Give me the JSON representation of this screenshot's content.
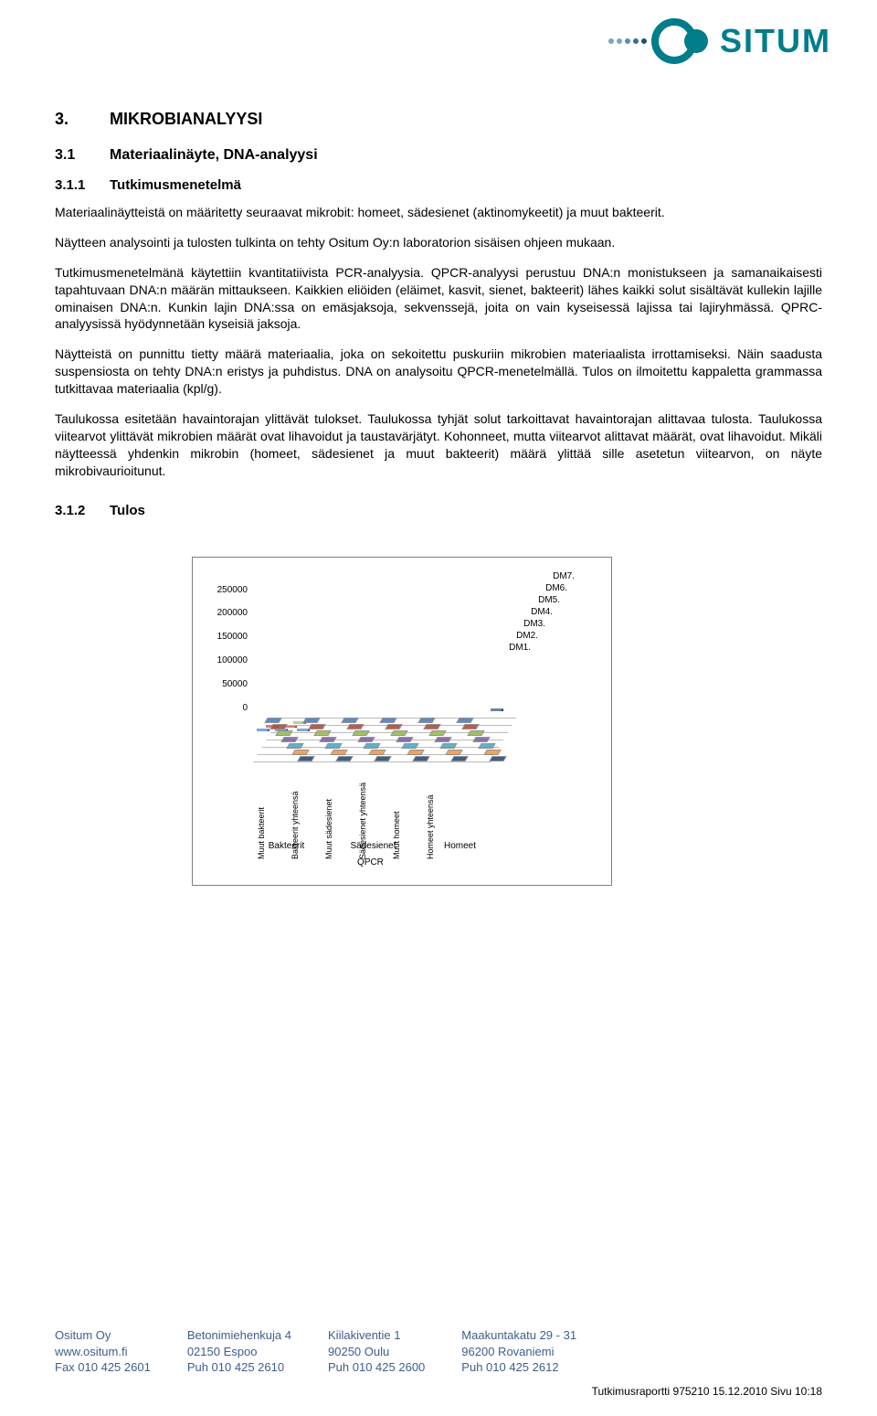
{
  "logo": {
    "text": "SITUM",
    "dots": [
      "#7aa6c9",
      "#7aa6c9",
      "#5a8fb8",
      "#3a6d94",
      "#1f4f72"
    ]
  },
  "h1_num": "3.",
  "h1_text": "MIKROBIANALYYSI",
  "h2_num": "3.1",
  "h2_text": "Materiaalinäyte, DNA-analyysi",
  "h3_num": "3.1.1",
  "h3_text": "Tutkimusmenetelmä",
  "p1": "Materiaalinäytteistä on määritetty seuraavat mikrobit: homeet, sädesienet (aktinomykeetit) ja muut bakteerit.",
  "p2": "Näytteen analysointi ja tulosten tulkinta on tehty Ositum Oy:n laboratorion sisäisen ohjeen mukaan.",
  "p3": "Tutkimusmenetelmänä käytettiin kvantitatiivista PCR-analyysia. QPCR-analyysi perustuu DNA:n monistukseen ja samanaikaisesti tapahtuvaan DNA:n määrän mittaukseen. Kaikkien eliöiden (eläimet, kasvit, sienet, bakteerit) lähes kaikki solut sisältävät kullekin lajille ominaisen DNA:n. Kunkin lajin DNA:ssa on emäsjaksoja, sekvenssejä, joita on vain kyseisessä lajissa tai lajiryhmässä. QPRC-analyysissä hyödynnetään kyseisiä jaksoja.",
  "p4": "Näytteistä on punnittu tietty määrä materiaalia, joka on sekoitettu puskuriin mikrobien materiaalista irrottamiseksi. Näin saadusta suspensiosta on tehty DNA:n eristys ja puhdistus. DNA on analysoitu QPCR-menetelmällä. Tulos on ilmoitettu kappaletta grammassa tutkittavaa materiaalia (kpl/g).",
  "p5": "Taulukossa esitetään havaintorajan ylittävät tulokset. Taulukossa tyhjät solut tarkoittavat havaintorajan alittavaa tulosta. Taulukossa viitearvot ylittävät mikrobien määrät ovat lihavoidut ja taustavärjätyt. Kohonneet, mutta viitearvot alittavat määrät, ovat lihavoidut. Mikäli näytteessä yhdenkin mikrobin (homeet, sädesienet ja muut bakteerit) määrä ylittää sille asetetun viitearvon, on näyte mikrobivaurioitunut.",
  "h3b_num": "3.1.2",
  "h3b_text": "Tulos",
  "chart": {
    "type": "3d-bar",
    "y_ticks": [
      "250000",
      "200000",
      "150000",
      "100000",
      "50000",
      "0"
    ],
    "ylim": [
      0,
      250000
    ],
    "z_labels": [
      "DM7.",
      "DM6.",
      "DM5.",
      "DM4.",
      "DM3.",
      "DM2.",
      "DM1."
    ],
    "x_categories": [
      "Muut bakteerit",
      "Bakteerit yhteensä",
      "Muut sädesienet",
      "Sädesienet yhteensä",
      "Muut homeet",
      "Homeet yhteensä"
    ],
    "x_groups": [
      "Bakteerit",
      "Sädesienet",
      "Homeet"
    ],
    "x_main": "QPCR",
    "series_colors": [
      "#4a7fbf",
      "#b84a3a",
      "#9bbb59",
      "#8064a2",
      "#4bacc6",
      "#f79646",
      "#2c4d75"
    ],
    "marker_colors": [
      "#4a7fbf",
      "#b84a3a",
      "#9bbb59",
      "#8064a2",
      "#4bacc6",
      "#f79646",
      "#2c4d75"
    ],
    "background": "#ffffff",
    "border_color": "#7f7f7f",
    "font_size": 10,
    "sample_bars": [
      {
        "x": 0,
        "z": 0,
        "h": 70,
        "c": "#4a7fbf"
      },
      {
        "x": 4,
        "z": 1,
        "h": 20,
        "c": "#b84a3a"
      },
      {
        "x": 20,
        "z": 0,
        "h": 90,
        "c": "#4a7fbf"
      },
      {
        "x": 24,
        "z": 1,
        "h": 60,
        "c": "#b84a3a"
      },
      {
        "x": 28,
        "z": 2,
        "h": 30,
        "c": "#9bbb59"
      },
      {
        "x": 44,
        "z": 0,
        "h": 40,
        "c": "#4a7fbf"
      },
      {
        "x": 220,
        "z": 6,
        "h": 120,
        "c": "#2c4d75"
      }
    ]
  },
  "footer": {
    "col1": {
      "l1": "Ositum Oy",
      "l2": "www.ositum.fi",
      "l3": "Fax 010 425 2601"
    },
    "col2": {
      "l1": "Betonimiehenkuja 4",
      "l2": "02150 Espoo",
      "l3": "Puh 010 425 2610"
    },
    "col3": {
      "l1": "Kiilakiventie 1",
      "l2": "90250 Oulu",
      "l3": "Puh 010 425 2600"
    },
    "col4": {
      "l1": "Maakuntakatu 29 - 31",
      "l2": "96200 Rovaniemi",
      "l3": "Puh 010 425 2612"
    }
  },
  "report_info": "Tutkimusraportti 975210 15.12.2010 Sivu 10:18"
}
